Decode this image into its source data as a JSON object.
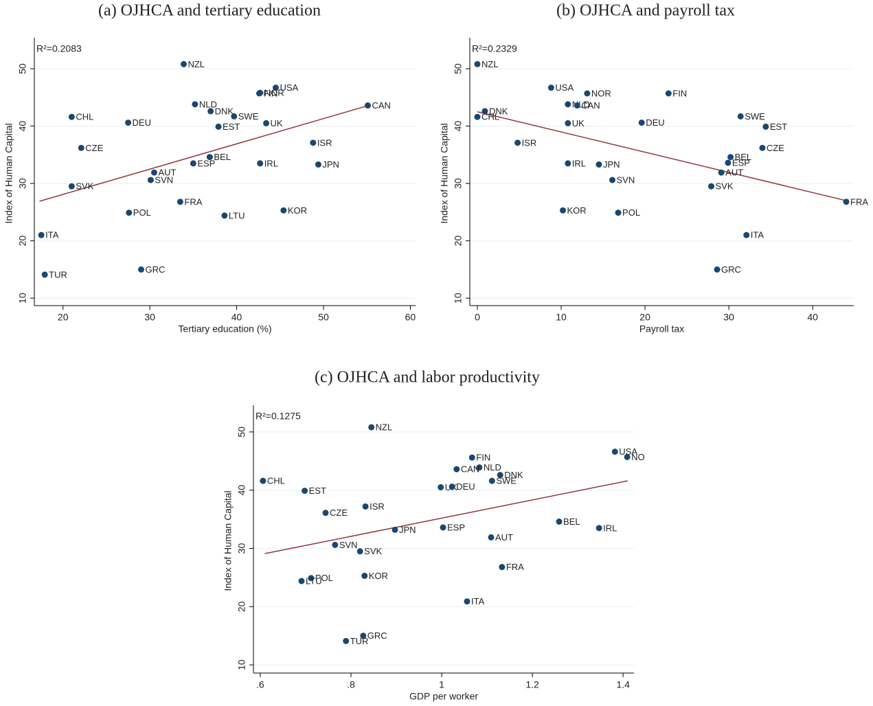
{
  "chart_data": [
    {
      "type": "scatter",
      "title": "(a) OJHCA and tertiary education",
      "annotation": "R²=0.2083",
      "xlabel": "Tertiary education (%)",
      "ylabel": "Index of Human Capital",
      "color": "#1a476f",
      "fit_color": "#90353b",
      "grid": true,
      "xlim": [
        16.7,
        60.6
      ],
      "ylim": [
        8.7,
        54.8
      ],
      "xticks": [
        20,
        30,
        40,
        50,
        60
      ],
      "yticks": [
        10,
        20,
        30,
        40,
        50
      ],
      "labels": [
        "NZL",
        "USA",
        "FIN",
        "NOR",
        "NLD",
        "DNK",
        "SWE",
        "CAN",
        "CHL",
        "DEU",
        "EST",
        "UK",
        "CZE",
        "ISR",
        "BEL",
        "ESP",
        "IRL",
        "JPN",
        "AUT",
        "SVN",
        "SVK",
        "FRA",
        "POL",
        "LTU",
        "KOR",
        "ITA",
        "TUR",
        "GRC"
      ],
      "x": [
        33.9,
        44.5,
        42.6,
        42.7,
        35.2,
        37.0,
        39.7,
        55.1,
        21.0,
        27.5,
        37.9,
        43.4,
        22.1,
        48.8,
        36.9,
        35.0,
        42.7,
        49.4,
        30.5,
        30.1,
        21.0,
        33.5,
        27.6,
        38.6,
        45.4,
        17.5,
        17.9,
        29.0
      ],
      "y": [
        50.8,
        46.7,
        45.7,
        45.8,
        43.8,
        42.6,
        41.7,
        43.6,
        41.6,
        40.6,
        39.9,
        40.5,
        36.2,
        37.1,
        34.6,
        33.5,
        33.5,
        33.3,
        31.9,
        30.6,
        29.5,
        26.8,
        24.9,
        24.4,
        25.3,
        21.0,
        14.1,
        15.0
      ],
      "fit": {
        "x": [
          17.3,
          55.2
        ],
        "y": [
          26.9,
          43.6
        ]
      }
    },
    {
      "type": "scatter",
      "title": "(b) OJHCA and payroll tax",
      "annotation": "R²=0.2329",
      "xlabel": "Payroll tax",
      "ylabel": "Index of Human Capital",
      "color": "#1a476f",
      "fit_color": "#90353b",
      "grid": true,
      "xlim": [
        -0.9,
        44.9
      ],
      "ylim": [
        8.7,
        54.8
      ],
      "xticks": [
        0,
        10,
        20,
        30,
        40
      ],
      "yticks": [
        10,
        20,
        30,
        40,
        50
      ],
      "labels": [
        "NZL",
        "USA",
        "NOR",
        "FIN",
        "NLD",
        "CAN",
        "DNK",
        "CHL",
        "UK",
        "DEU",
        "SWE",
        "EST",
        "ISR",
        "CZE",
        "IRL",
        "JPN",
        "BEL",
        "ESP",
        "AUT",
        "SVN",
        "SVK",
        "FRA",
        "KOR",
        "POL",
        "ITA",
        "GRC"
      ],
      "x": [
        0,
        8.8,
        13.1,
        22.8,
        10.8,
        11.9,
        0.9,
        0,
        10.8,
        19.6,
        31.4,
        34.4,
        4.8,
        34.0,
        10.8,
        14.5,
        30.2,
        29.9,
        29.1,
        16.1,
        27.9,
        44.0,
        10.2,
        16.8,
        32.1,
        28.6
      ],
      "y": [
        50.8,
        46.7,
        45.7,
        45.7,
        43.8,
        43.6,
        42.6,
        41.6,
        40.5,
        40.6,
        41.7,
        39.9,
        37.1,
        36.2,
        33.5,
        33.3,
        34.6,
        33.6,
        31.9,
        30.6,
        29.5,
        26.8,
        25.3,
        24.9,
        21.0,
        15.0
      ],
      "fit": {
        "x": [
          0,
          44
        ],
        "y": [
          42.5,
          27.0
        ]
      }
    },
    {
      "type": "scatter",
      "title": "(c) OJHCA and labor productivity",
      "annotation": "R²=0.1275",
      "xlabel": "GDP per worker",
      "ylabel": "Index of Human Capital",
      "color": "#1a476f",
      "fit_color": "#90353b",
      "grid": true,
      "xlim": [
        0.585,
        1.424
      ],
      "ylim": [
        8.6,
        54
      ],
      "xticks": [
        {
          "value": 0.6,
          "label": ".6"
        },
        {
          "value": 0.8,
          "label": ".8"
        },
        1,
        1.2,
        1.4
      ],
      "yticks": [
        10,
        20,
        30,
        40,
        50
      ],
      "labels": [
        "NZL",
        "USA",
        "NO",
        "FIN",
        "NLD",
        "CAN",
        "DNK",
        "SWE",
        "CHL",
        "UK",
        "DEU",
        "EST",
        "ISR",
        "CZE",
        "BEL",
        "ESP",
        "JPN",
        "IRL",
        "AUT",
        "SVN",
        "SVK",
        "FRA",
        "KOR",
        "POL",
        "LTU",
        "ITA",
        "GRC",
        "TUR"
      ],
      "x": [
        0.845,
        1.382,
        1.409,
        1.067,
        1.083,
        1.033,
        1.129,
        1.111,
        0.606,
        0.998,
        1.023,
        0.698,
        0.832,
        0.744,
        1.259,
        1.003,
        0.897,
        1.347,
        1.109,
        0.765,
        0.82,
        1.133,
        0.83,
        0.712,
        0.691,
        1.056,
        0.827,
        0.789
      ],
      "y": [
        50.8,
        46.6,
        45.7,
        45.6,
        43.9,
        43.6,
        42.6,
        41.6,
        41.6,
        40.5,
        40.6,
        39.9,
        37.2,
        36.1,
        34.6,
        33.6,
        33.2,
        33.5,
        31.9,
        30.6,
        29.5,
        26.8,
        25.3,
        24.9,
        24.4,
        20.9,
        15.0,
        14.1
      ],
      "fit": {
        "x": [
          0.61,
          1.41
        ],
        "y": [
          29.1,
          41.6
        ]
      }
    }
  ]
}
